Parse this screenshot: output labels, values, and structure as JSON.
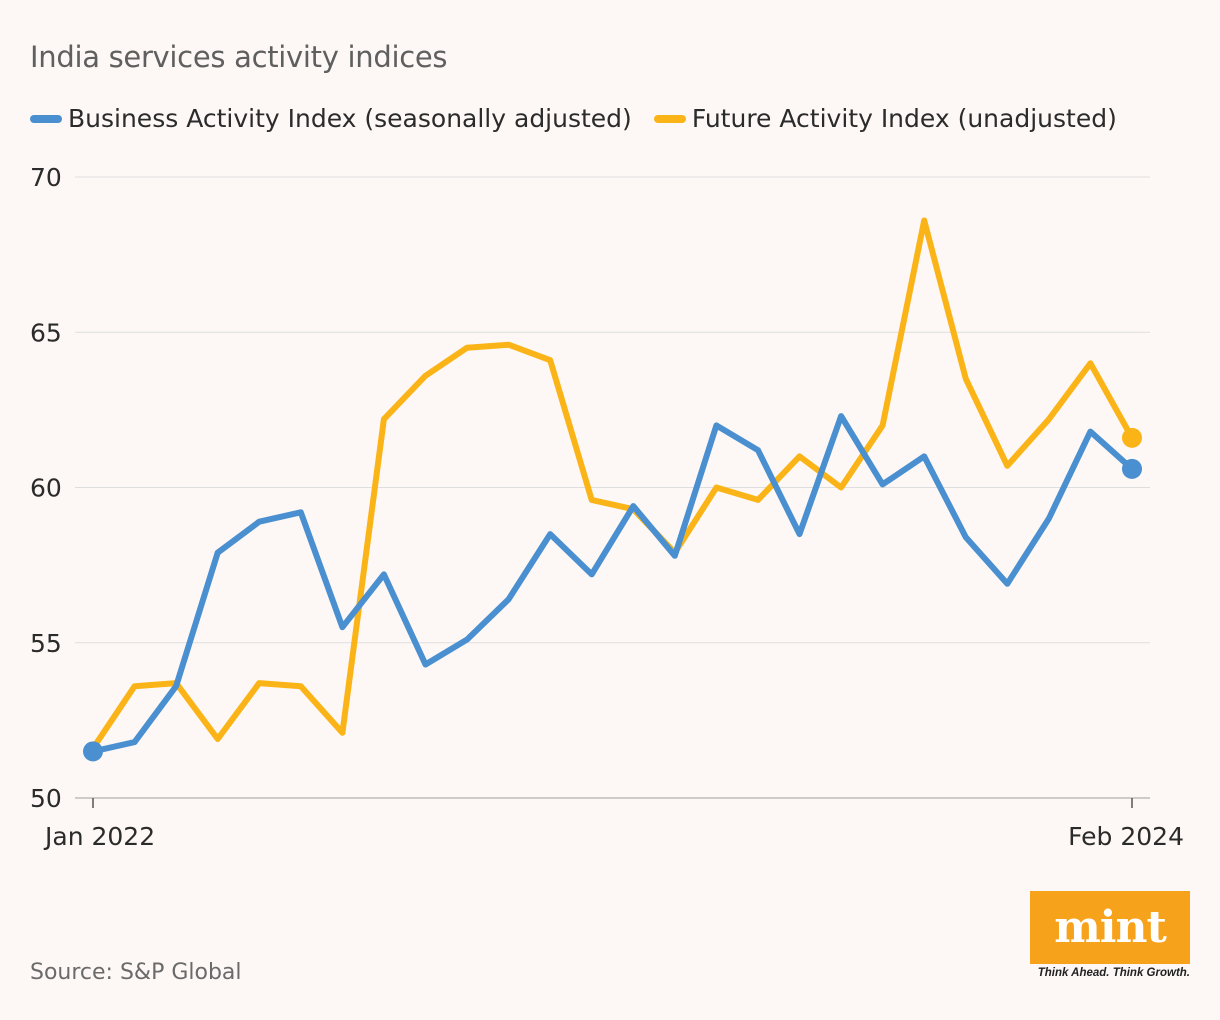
{
  "title": "India services activity indices",
  "legend": [
    {
      "label": "Business Activity Index (seasonally adjusted)",
      "color": "#4a8fd0"
    },
    {
      "label": "Future Activity Index (unadjusted)",
      "color": "#fbb417"
    }
  ],
  "source": "Source: S&P Global",
  "logo": {
    "text": "mint",
    "tagline": "Think Ahead. Think Growth."
  },
  "chart_data": {
    "type": "line",
    "title": "India services activity indices",
    "xlabel": "",
    "ylabel": "",
    "ylim": [
      50,
      70
    ],
    "yticks": [
      50,
      55,
      60,
      65,
      70
    ],
    "x_tick_labels": [
      {
        "index": 0,
        "label": "Jan 2022"
      },
      {
        "index": 25,
        "label": "Feb 2024"
      }
    ],
    "x": [
      "Jan 2022",
      "Feb 2022",
      "Mar 2022",
      "Apr 2022",
      "May 2022",
      "Jun 2022",
      "Jul 2022",
      "Aug 2022",
      "Sep 2022",
      "Oct 2022",
      "Nov 2022",
      "Dec 2022",
      "Jan 2023",
      "Feb 2023",
      "Mar 2023",
      "Apr 2023",
      "May 2023",
      "Jun 2023",
      "Jul 2023",
      "Aug 2023",
      "Sep 2023",
      "Oct 2023",
      "Nov 2023",
      "Dec 2023",
      "Jan 2024",
      "Feb 2024"
    ],
    "series": [
      {
        "name": "Business Activity Index (seasonally adjusted)",
        "color": "#4a8fd0",
        "values": [
          51.5,
          51.8,
          53.6,
          57.9,
          58.9,
          59.2,
          55.5,
          57.2,
          54.3,
          55.1,
          56.4,
          58.5,
          57.2,
          59.4,
          57.8,
          62.0,
          61.2,
          58.5,
          62.3,
          60.1,
          61.0,
          58.4,
          56.9,
          59.0,
          61.8,
          60.6
        ]
      },
      {
        "name": "Future Activity Index (unadjusted)",
        "color": "#fbb417",
        "values": [
          51.6,
          53.6,
          53.7,
          51.9,
          53.7,
          53.6,
          52.1,
          62.2,
          63.6,
          64.5,
          64.6,
          64.1,
          59.6,
          59.3,
          57.9,
          60.0,
          59.6,
          61.0,
          60.0,
          62.0,
          68.6,
          63.5,
          60.7,
          62.2,
          64.0,
          61.6
        ]
      }
    ]
  }
}
